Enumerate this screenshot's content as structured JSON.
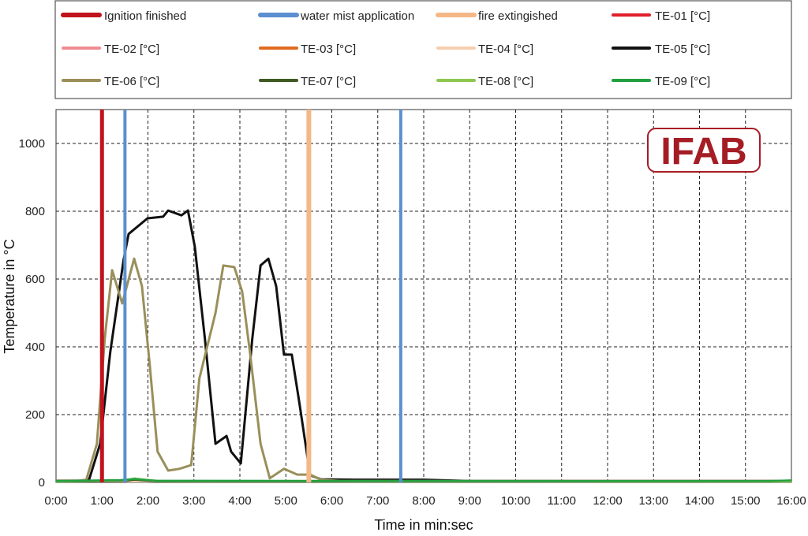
{
  "chart_data": {
    "type": "line",
    "xlabel": "Time in min:sec",
    "ylabel": "Temperature in °C",
    "xlim": [
      0,
      16
    ],
    "ylim": [
      0,
      1100
    ],
    "x_unit": "minutes",
    "x_ticks": [
      "0:00",
      "1:00",
      "2:00",
      "3:00",
      "4:00",
      "5:00",
      "6:00",
      "7:00",
      "8:00",
      "9:00",
      "10:00",
      "11:00",
      "12:00",
      "13:00",
      "14:00",
      "15:00",
      "16:00"
    ],
    "y_ticks": [
      0,
      200,
      400,
      600,
      800,
      1000
    ],
    "grid": true,
    "legend_position": "top",
    "logo": "IFAB",
    "markers": [
      {
        "name": "Ignition finished",
        "color": "#c0141c",
        "x": [
          1.0
        ]
      },
      {
        "name": "water mist application",
        "color": "#5b8fd0",
        "x": [
          1.5,
          7.5
        ]
      },
      {
        "name": "fire extingished",
        "color": "#f4b887",
        "x": [
          5.5
        ]
      }
    ],
    "series": [
      {
        "name": "TE-01 [°C]",
        "color": "#e0202a",
        "x": [
          0,
          16
        ],
        "y": [
          3,
          3
        ]
      },
      {
        "name": "TE-02 [°C]",
        "color": "#ee8c92",
        "x": [
          0,
          16
        ],
        "y": [
          3,
          3
        ]
      },
      {
        "name": "TE-03 [°C]",
        "color": "#e06a1e",
        "x": [
          0,
          16
        ],
        "y": [
          3,
          3
        ]
      },
      {
        "name": "TE-04 [°C]",
        "color": "#f6cfb0",
        "x": [
          0,
          16
        ],
        "y": [
          3,
          3
        ]
      },
      {
        "name": "TE-05 [°C]",
        "color": "#111111",
        "x": [
          0,
          0.5,
          0.72,
          0.96,
          1.18,
          1.47,
          1.58,
          1.99,
          2.33,
          2.44,
          2.73,
          2.87,
          3.02,
          3.24,
          3.47,
          3.71,
          3.81,
          4.02,
          4.27,
          4.45,
          4.62,
          4.79,
          4.96,
          5.13,
          5.3,
          5.53,
          5.77,
          6.5,
          8.0,
          9,
          16
        ],
        "y": [
          5,
          5,
          8,
          114,
          384,
          656,
          733,
          779,
          784,
          802,
          788,
          802,
          695,
          423,
          114,
          137,
          91,
          56,
          423,
          640,
          660,
          579,
          377,
          377,
          230,
          21,
          9,
          8,
          8,
          4,
          4
        ]
      },
      {
        "name": "TE-06 [°C]",
        "color": "#9a8f5a",
        "x": [
          0,
          0.5,
          0.66,
          0.89,
          1.06,
          1.22,
          1.44,
          1.7,
          1.87,
          2.04,
          2.21,
          2.44,
          2.68,
          2.94,
          3.12,
          3.47,
          3.64,
          3.88,
          4.05,
          4.22,
          4.45,
          4.65,
          4.96,
          5.25,
          5.53,
          5.77,
          6.2,
          16
        ],
        "y": [
          5,
          5,
          8,
          114,
          423,
          626,
          528,
          660,
          579,
          346,
          91,
          35,
          40,
          51,
          307,
          500,
          640,
          635,
          563,
          384,
          114,
          12,
          40,
          23,
          23,
          8,
          4,
          4
        ]
      },
      {
        "name": "TE-07 [°C]",
        "color": "#3f5a22",
        "x": [
          0,
          1.5,
          1.7,
          2.2,
          16
        ],
        "y": [
          2,
          4,
          8,
          3,
          2
        ]
      },
      {
        "name": "TE-08 [°C]",
        "color": "#8cc850",
        "x": [
          0,
          1.5,
          1.7,
          2.2,
          16
        ],
        "y": [
          3,
          6,
          12,
          4,
          3
        ]
      },
      {
        "name": "TE-09 [°C]",
        "color": "#22a040",
        "x": [
          0,
          1.4,
          1.7,
          2.2,
          15.5,
          16
        ],
        "y": [
          4,
          7,
          10,
          5,
          4,
          6
        ]
      }
    ]
  }
}
